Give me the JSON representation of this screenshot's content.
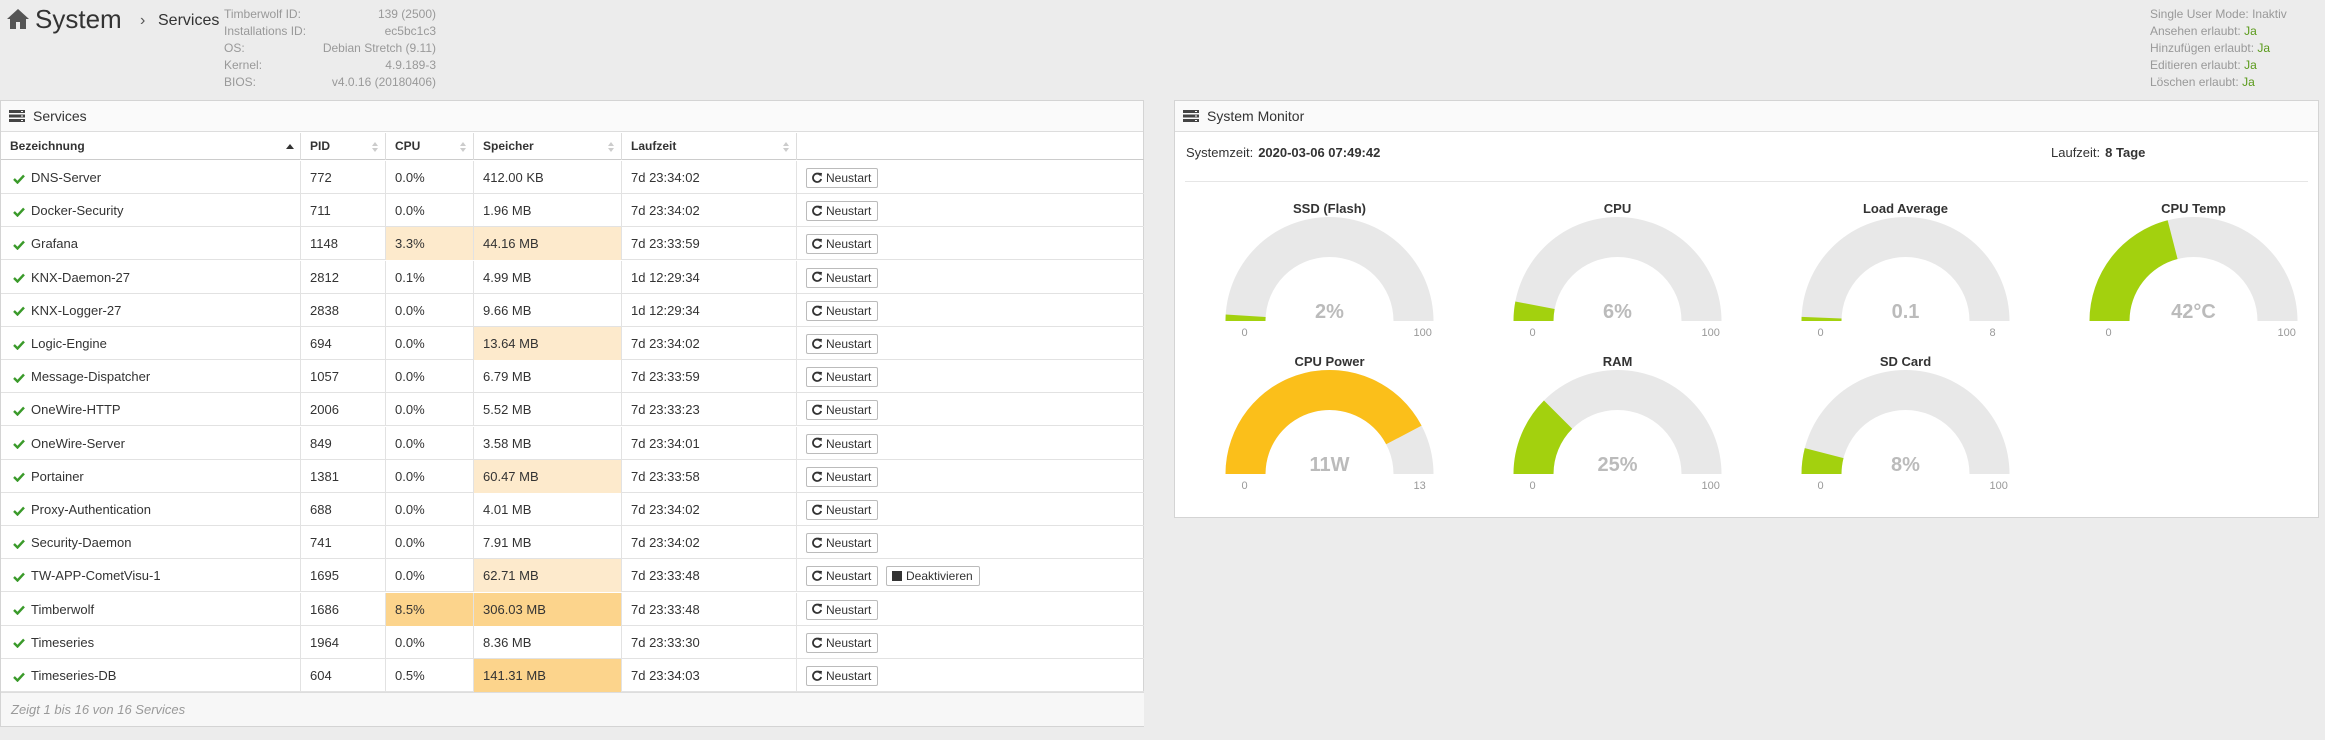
{
  "header": {
    "title": "System",
    "separator": "›",
    "crumb": "Services"
  },
  "info": [
    {
      "label": "Timberwolf ID:",
      "value": "139 (2500)"
    },
    {
      "label": "Installations ID:",
      "value": "ec5bc1c3"
    },
    {
      "label": "OS:",
      "value": "Debian Stretch (9.11)"
    },
    {
      "label": "Kernel:",
      "value": "4.9.189-3"
    },
    {
      "label": "BIOS:",
      "value": "v4.0.16 (20180406)"
    }
  ],
  "rights": [
    {
      "label": "Single User Mode:",
      "value": "Inaktiv",
      "yes": false
    },
    {
      "label": "Ansehen erlaubt:",
      "value": "Ja",
      "yes": true
    },
    {
      "label": "Hinzufügen erlaubt:",
      "value": "Ja",
      "yes": true
    },
    {
      "label": "Editieren erlaubt:",
      "value": "Ja",
      "yes": true
    },
    {
      "label": "Löschen erlaubt:",
      "value": "Ja",
      "yes": true
    }
  ],
  "services": {
    "title": "Services",
    "columns": [
      "Bezeichnung",
      "PID",
      "CPU",
      "Speicher",
      "Laufzeit"
    ],
    "restart_label": "Neustart",
    "deactivate_label": "Deaktivieren",
    "rows": [
      {
        "name": "DNS-Server",
        "pid": "772",
        "cpu": "0.0%",
        "mem": "412.00 KB",
        "uptime": "7d 23:34:02",
        "cpu_hl": 0,
        "mem_hl": 0
      },
      {
        "name": "Docker-Security",
        "pid": "711",
        "cpu": "0.0%",
        "mem": "1.96 MB",
        "uptime": "7d 23:34:02",
        "cpu_hl": 0,
        "mem_hl": 0
      },
      {
        "name": "Grafana",
        "pid": "1148",
        "cpu": "3.3%",
        "mem": "44.16 MB",
        "uptime": "7d 23:33:59",
        "cpu_hl": 1,
        "mem_hl": 1
      },
      {
        "name": "KNX-Daemon-27",
        "pid": "2812",
        "cpu": "0.1%",
        "mem": "4.99 MB",
        "uptime": "1d 12:29:34",
        "cpu_hl": 0,
        "mem_hl": 0
      },
      {
        "name": "KNX-Logger-27",
        "pid": "2838",
        "cpu": "0.0%",
        "mem": "9.66 MB",
        "uptime": "1d 12:29:34",
        "cpu_hl": 0,
        "mem_hl": 0
      },
      {
        "name": "Logic-Engine",
        "pid": "694",
        "cpu": "0.0%",
        "mem": "13.64 MB",
        "uptime": "7d 23:34:02",
        "cpu_hl": 0,
        "mem_hl": 1
      },
      {
        "name": "Message-Dispatcher",
        "pid": "1057",
        "cpu": "0.0%",
        "mem": "6.79 MB",
        "uptime": "7d 23:33:59",
        "cpu_hl": 0,
        "mem_hl": 0
      },
      {
        "name": "OneWire-HTTP",
        "pid": "2006",
        "cpu": "0.0%",
        "mem": "5.52 MB",
        "uptime": "7d 23:33:23",
        "cpu_hl": 0,
        "mem_hl": 0
      },
      {
        "name": "OneWire-Server",
        "pid": "849",
        "cpu": "0.0%",
        "mem": "3.58 MB",
        "uptime": "7d 23:34:01",
        "cpu_hl": 0,
        "mem_hl": 0
      },
      {
        "name": "Portainer",
        "pid": "1381",
        "cpu": "0.0%",
        "mem": "60.47 MB",
        "uptime": "7d 23:33:58",
        "cpu_hl": 0,
        "mem_hl": 1
      },
      {
        "name": "Proxy-Authentication",
        "pid": "688",
        "cpu": "0.0%",
        "mem": "4.01 MB",
        "uptime": "7d 23:34:02",
        "cpu_hl": 0,
        "mem_hl": 0
      },
      {
        "name": "Security-Daemon",
        "pid": "741",
        "cpu": "0.0%",
        "mem": "7.91 MB",
        "uptime": "7d 23:34:02",
        "cpu_hl": 0,
        "mem_hl": 0
      },
      {
        "name": "TW-APP-CometVisu-1",
        "pid": "1695",
        "cpu": "0.0%",
        "mem": "62.71 MB",
        "uptime": "7d 23:33:48",
        "cpu_hl": 0,
        "mem_hl": 1,
        "deactivate": true
      },
      {
        "name": "Timberwolf",
        "pid": "1686",
        "cpu": "8.5%",
        "mem": "306.03 MB",
        "uptime": "7d 23:33:48",
        "cpu_hl": 2,
        "mem_hl": 2
      },
      {
        "name": "Timeseries",
        "pid": "1964",
        "cpu": "0.0%",
        "mem": "8.36 MB",
        "uptime": "7d 23:33:30",
        "cpu_hl": 0,
        "mem_hl": 0
      },
      {
        "name": "Timeseries-DB",
        "pid": "604",
        "cpu": "0.5%",
        "mem": "141.31 MB",
        "uptime": "7d 23:34:03",
        "cpu_hl": 0,
        "mem_hl": 2
      }
    ],
    "footer": "Zeigt 1 bis 16 von 16 Services"
  },
  "monitor": {
    "title": "System Monitor",
    "systemzeit_label": "Systemzeit:",
    "systemzeit": "2020-03-06 07:49:42",
    "laufzeit_label": "Laufzeit:",
    "laufzeit": "8 Tage",
    "gauges": [
      {
        "title": "SSD (Flash)",
        "display": "2%",
        "value": 2,
        "min": "0",
        "max": "100",
        "max_num": 100,
        "color": "#a3d10e"
      },
      {
        "title": "CPU",
        "display": "6%",
        "value": 6,
        "min": "0",
        "max": "100",
        "max_num": 100,
        "color": "#a3d10e"
      },
      {
        "title": "Load Average",
        "display": "0.1",
        "value": 0.1,
        "min": "0",
        "max": "8",
        "max_num": 8,
        "color": "#a3d10e"
      },
      {
        "title": "CPU Temp",
        "display": "42°C",
        "value": 42,
        "min": "0",
        "max": "100",
        "max_num": 100,
        "color": "#a3d10e"
      },
      {
        "title": "CPU Power",
        "display": "11W",
        "value": 11,
        "min": "0",
        "max": "13",
        "max_num": 13,
        "color": "#fbbf1a"
      },
      {
        "title": "RAM",
        "display": "25%",
        "value": 25,
        "min": "0",
        "max": "100",
        "max_num": 100,
        "color": "#a3d10e"
      },
      {
        "title": "SD Card",
        "display": "8%",
        "value": 8,
        "min": "0",
        "max": "100",
        "max_num": 100,
        "color": "#a3d10e"
      }
    ]
  },
  "colors": {
    "ok_green": "#3a9a2a",
    "hl_light": "#fdeacc",
    "hl_strong": "#fcd48c",
    "gauge_track": "#e8e8e8"
  }
}
